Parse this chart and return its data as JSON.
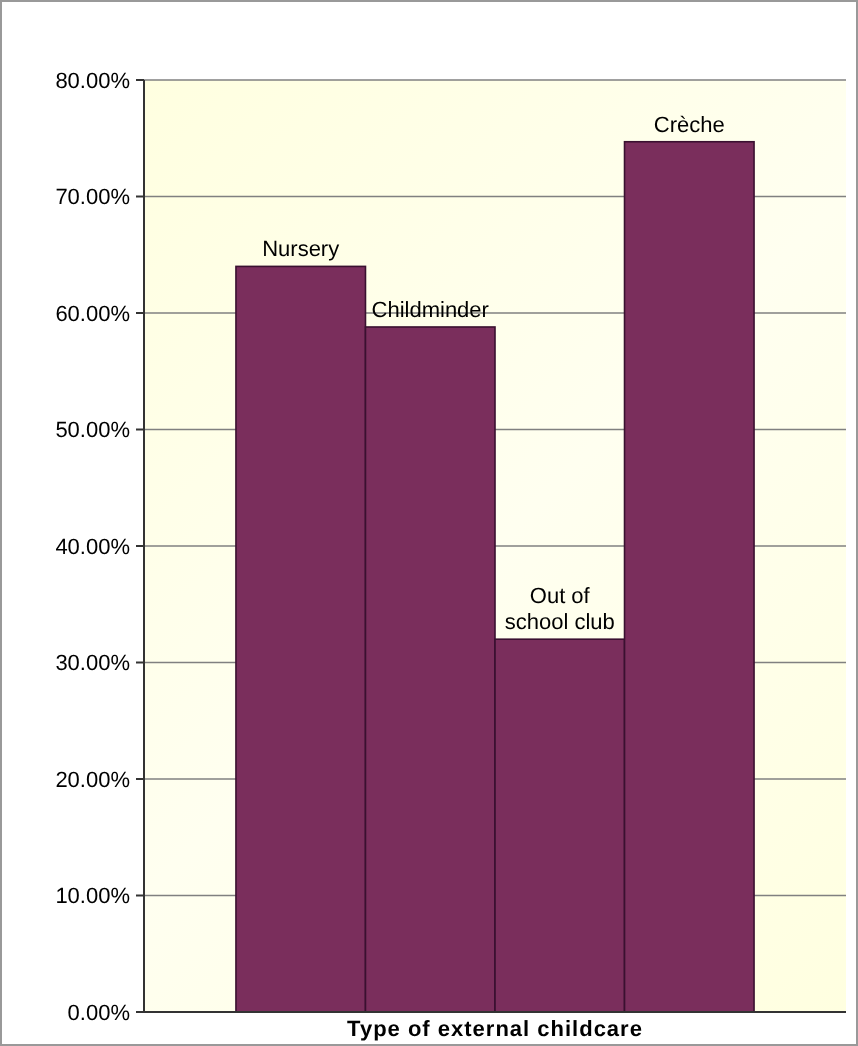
{
  "chart_data": {
    "type": "bar",
    "xlabel": "Type of external childcare",
    "categories": [
      "Nursery",
      "Childminder",
      "Out of\nschool club",
      "Crèche"
    ],
    "values": [
      64,
      58.8,
      32,
      74.7
    ],
    "color": "#7a2e5c",
    "ylim": [
      0,
      80
    ],
    "yticks": [
      {
        "value": 0,
        "label": "0.00%"
      },
      {
        "value": 10,
        "label": "10.00%"
      },
      {
        "value": 20,
        "label": "20.00%"
      },
      {
        "value": 30,
        "label": "30.00%"
      },
      {
        "value": 40,
        "label": "40.00%"
      },
      {
        "value": 50,
        "label": "50.00%"
      },
      {
        "value": 60,
        "label": "60.00%"
      },
      {
        "value": 70,
        "label": "70.00%"
      },
      {
        "value": 80,
        "label": "80.00%"
      }
    ],
    "grid": "y"
  }
}
